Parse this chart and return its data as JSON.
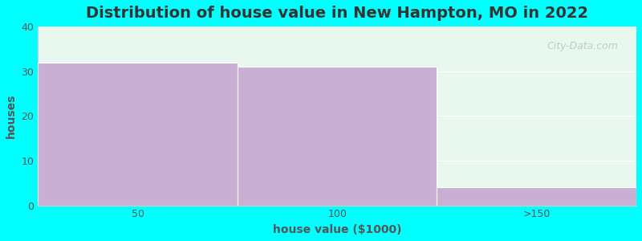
{
  "title": "Distribution of house value in New Hampton, MO in 2022",
  "xlabel": "house value ($1000)",
  "ylabel": "houses",
  "categories": [
    "50",
    "100",
    ">150"
  ],
  "values": [
    32,
    31,
    4
  ],
  "bar_color": "#c9afd4",
  "background_color": "#00ffff",
  "plot_bg_top": "#e8f8ee",
  "plot_bg_bottom": "#f5fff5",
  "ylim": [
    0,
    40
  ],
  "yticks": [
    0,
    10,
    20,
    30,
    40
  ],
  "title_fontsize": 14,
  "axis_label_fontsize": 10,
  "tick_fontsize": 9,
  "title_color": "#333333",
  "label_color": "#555555",
  "watermark": "City-Data.com",
  "bin_edges": [
    0,
    1,
    2,
    3
  ],
  "figsize": [
    8.0,
    3.0
  ],
  "dpi": 100
}
